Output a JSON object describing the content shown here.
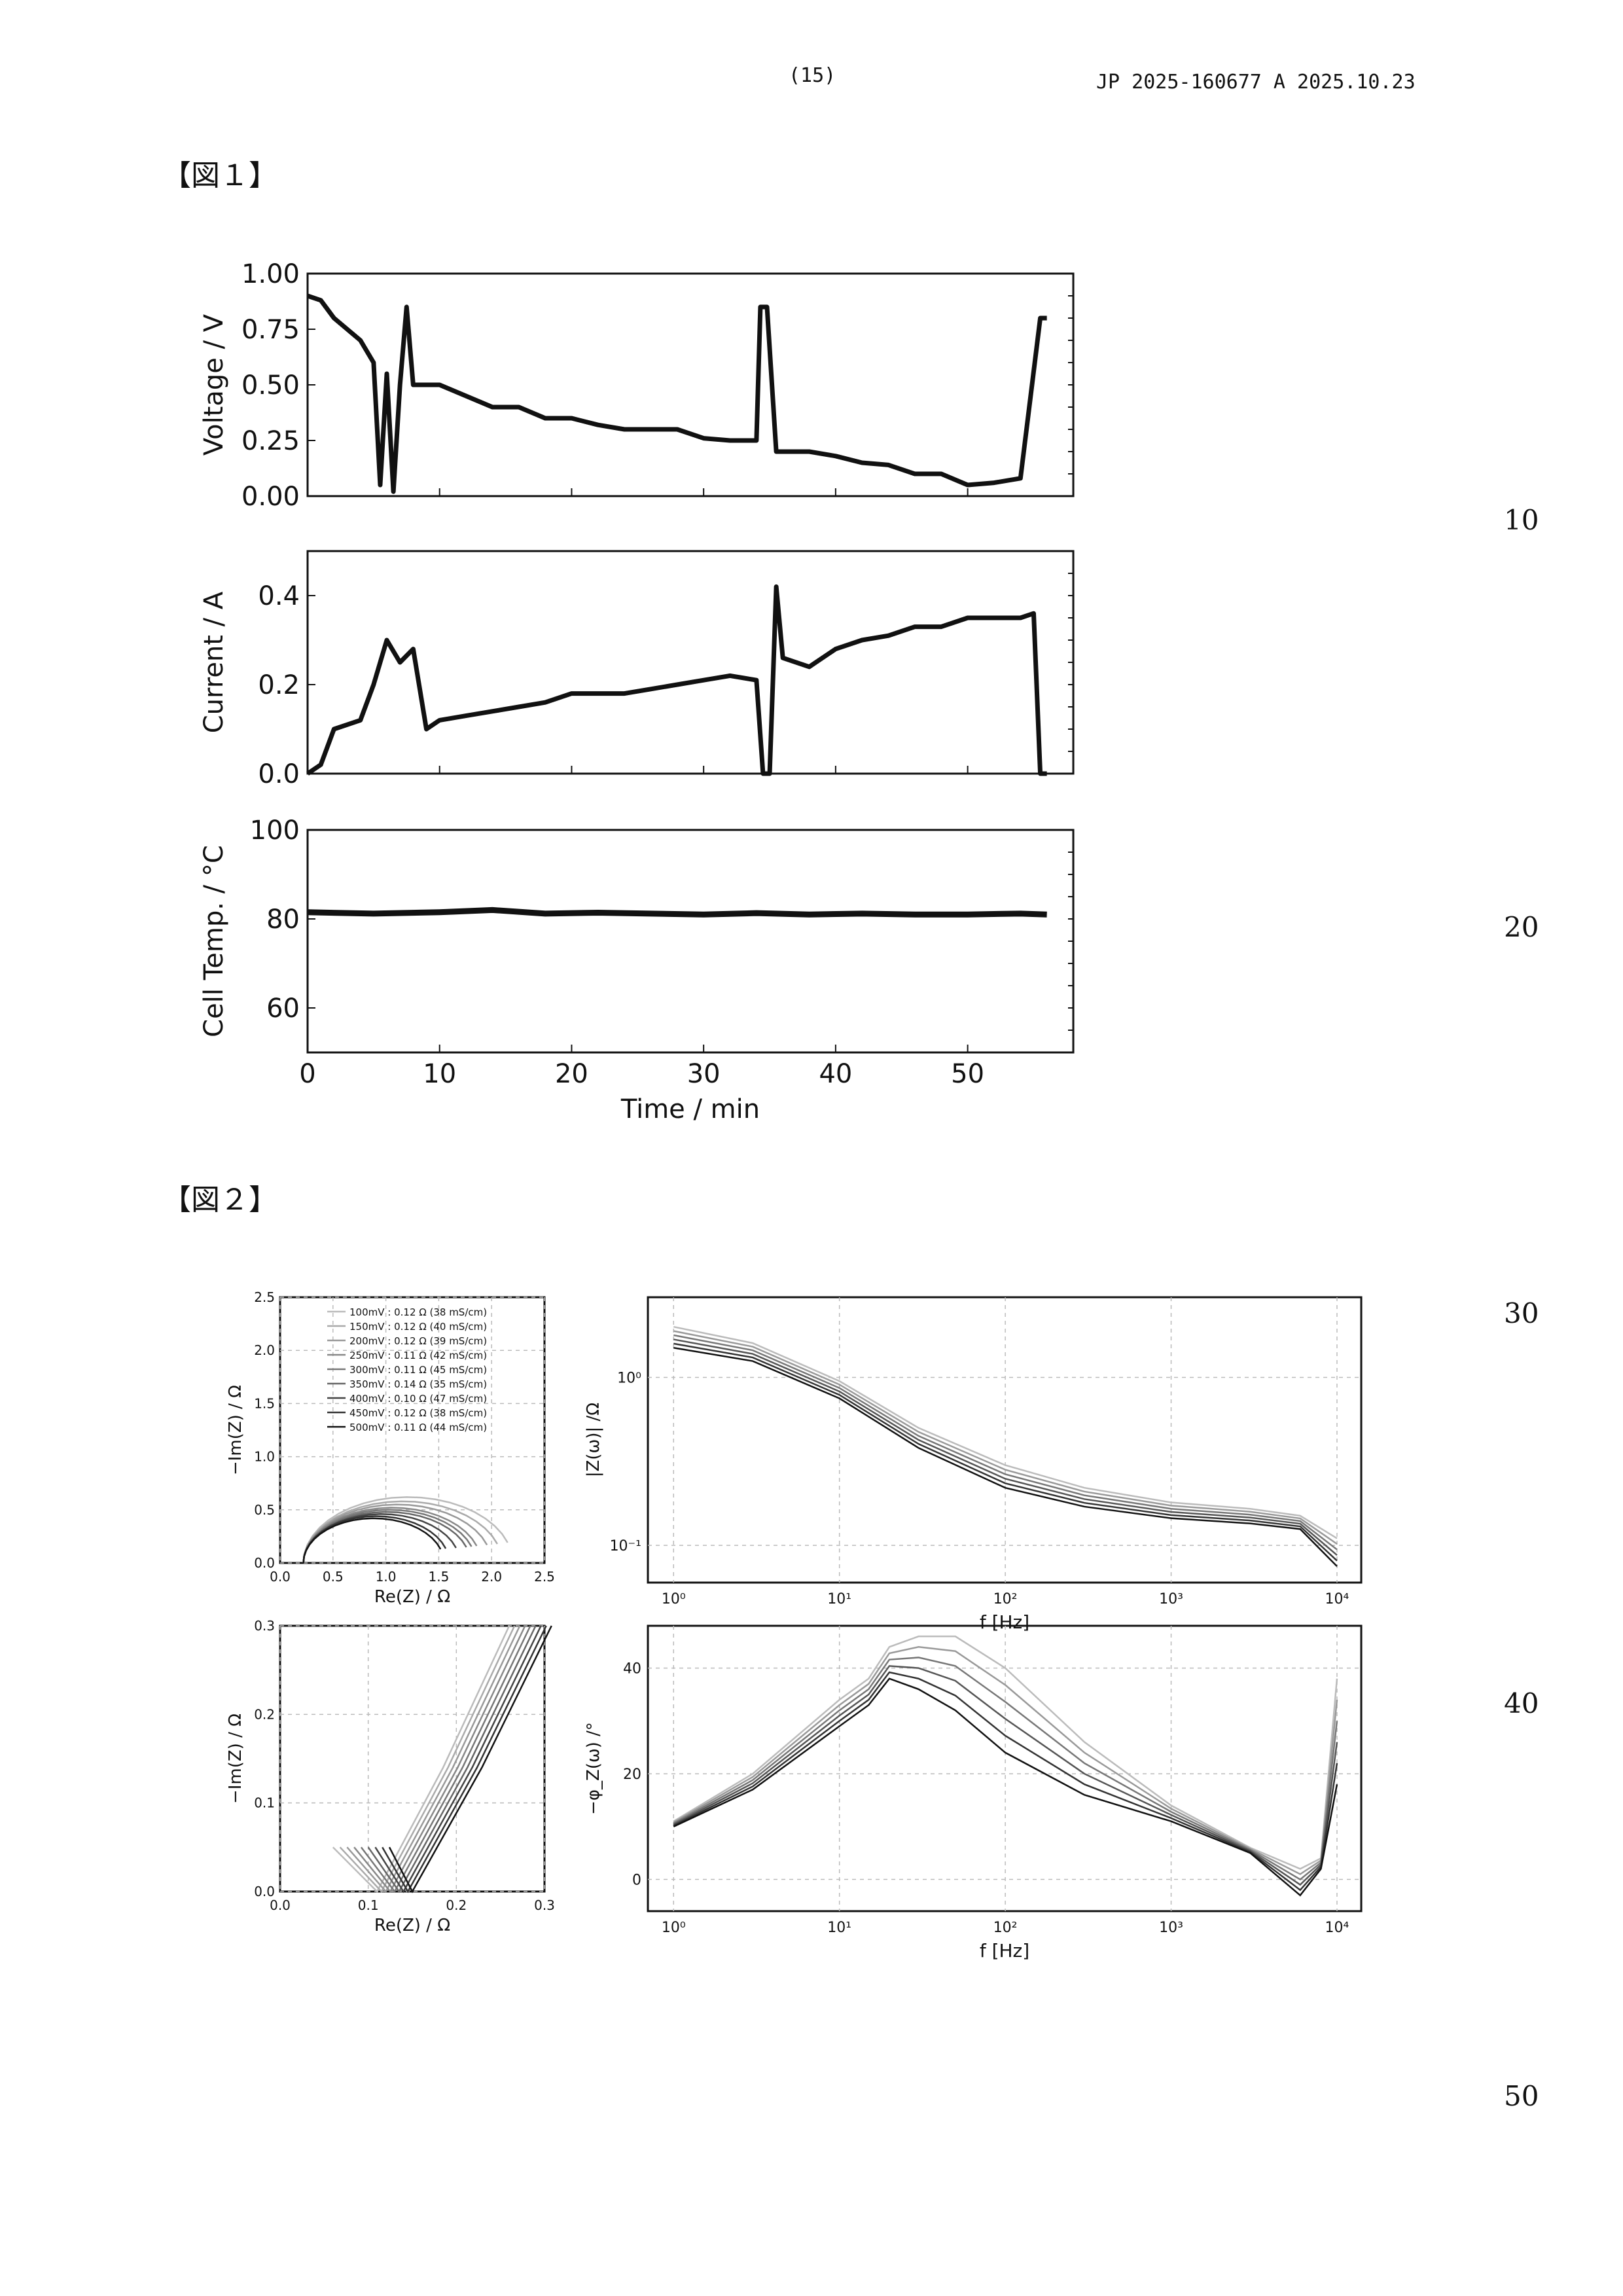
{
  "header": {
    "page_number": "(15)",
    "doc_id": "JP  2025-160677  A  2025.10.23"
  },
  "figures": {
    "fig1_label": "【図１】",
    "fig2_label": "【図２】"
  },
  "line_numbers": [
    "10",
    "20",
    "30",
    "40",
    "50"
  ],
  "chart_data": [
    {
      "type": "line",
      "xlabel": "",
      "ylabel": "Voltage / V",
      "xlim": [
        0,
        58
      ],
      "ylim": [
        0.0,
        1.0
      ],
      "yticks": [
        "0.00",
        "0.25",
        "0.50",
        "0.75",
        "1.00"
      ],
      "x": [
        0,
        1,
        2,
        3,
        4,
        5,
        5.5,
        6,
        6.5,
        7,
        7.5,
        8,
        10,
        12,
        14,
        16,
        18,
        20,
        22,
        24,
        26,
        28,
        30,
        32,
        34,
        34.3,
        34.8,
        35.5,
        36,
        38,
        40,
        42,
        44,
        46,
        48,
        50,
        52,
        54,
        55.5,
        56
      ],
      "values": [
        0.9,
        0.88,
        0.8,
        0.75,
        0.7,
        0.6,
        0.05,
        0.55,
        0.02,
        0.5,
        0.85,
        0.5,
        0.5,
        0.45,
        0.4,
        0.4,
        0.35,
        0.35,
        0.32,
        0.3,
        0.3,
        0.3,
        0.26,
        0.25,
        0.25,
        0.85,
        0.85,
        0.2,
        0.2,
        0.2,
        0.18,
        0.15,
        0.14,
        0.1,
        0.1,
        0.05,
        0.06,
        0.08,
        0.8,
        0.8
      ]
    },
    {
      "type": "line",
      "xlabel": "",
      "ylabel": "Current / A",
      "xlim": [
        0,
        58
      ],
      "ylim": [
        0.0,
        0.5
      ],
      "yticks": [
        "0.0",
        "0.2",
        "0.4"
      ],
      "x": [
        0,
        1,
        2,
        4,
        5,
        6,
        7,
        8,
        9,
        10,
        12,
        14,
        16,
        18,
        20,
        22,
        24,
        26,
        28,
        30,
        32,
        34,
        34.5,
        35,
        35.5,
        36,
        38,
        40,
        42,
        44,
        46,
        48,
        50,
        52,
        54,
        55,
        55.5,
        56
      ],
      "values": [
        0.0,
        0.02,
        0.1,
        0.12,
        0.2,
        0.3,
        0.25,
        0.28,
        0.1,
        0.12,
        0.13,
        0.14,
        0.15,
        0.16,
        0.18,
        0.18,
        0.18,
        0.19,
        0.2,
        0.21,
        0.22,
        0.21,
        0.0,
        0.0,
        0.42,
        0.26,
        0.24,
        0.28,
        0.3,
        0.31,
        0.33,
        0.33,
        0.35,
        0.35,
        0.35,
        0.36,
        0.0,
        0.0
      ]
    },
    {
      "type": "line",
      "xlabel": "Time / min",
      "ylabel": "Cell Temp. / °C",
      "xlim": [
        0,
        58
      ],
      "ylim": [
        50,
        100
      ],
      "xticks": [
        "0",
        "10",
        "20",
        "30",
        "40",
        "50"
      ],
      "yticks": [
        "60",
        "80",
        "100"
      ],
      "x": [
        0,
        5,
        10,
        14,
        18,
        22,
        26,
        30,
        34,
        38,
        42,
        46,
        50,
        54,
        56
      ],
      "values": [
        81.5,
        81.2,
        81.5,
        82.0,
        81.2,
        81.4,
        81.2,
        81.0,
        81.3,
        81.0,
        81.2,
        81.0,
        81.0,
        81.2,
        81.0
      ]
    },
    {
      "type": "line",
      "title": "",
      "xlabel": "Re(Z) / Ω",
      "ylabel": "−Im(Z) / Ω",
      "xlim": [
        0.0,
        2.5
      ],
      "ylim": [
        0.0,
        2.5
      ],
      "xticks": [
        "0.0",
        "0.5",
        "1.0",
        "1.5",
        "2.0",
        "2.5"
      ],
      "yticks": [
        "0.0",
        "0.5",
        "1.0",
        "1.5",
        "2.0",
        "2.5"
      ],
      "legend": "top-right",
      "series": [
        {
          "name": "100mV : 0.12 Ω (38 mS/cm)",
          "peak": 0.62,
          "end": 2.1
        },
        {
          "name": "150mV : 0.12 Ω (40 mS/cm)",
          "peak": 0.58,
          "end": 2.0
        },
        {
          "name": "200mV : 0.12 Ω (39 mS/cm)",
          "peak": 0.55,
          "end": 1.9
        },
        {
          "name": "250mV : 0.11 Ω (42 mS/cm)",
          "peak": 0.52,
          "end": 1.8
        },
        {
          "name": "300mV : 0.11 Ω (45 mS/cm)",
          "peak": 0.5,
          "end": 1.75
        },
        {
          "name": "350mV : 0.14 Ω (35 mS/cm)",
          "peak": 0.48,
          "end": 1.7
        },
        {
          "name": "400mV : 0.10 Ω (47 mS/cm)",
          "peak": 0.46,
          "end": 1.6
        },
        {
          "name": "450mV : 0.12 Ω (38 mS/cm)",
          "peak": 0.44,
          "end": 1.5
        },
        {
          "name": "500mV : 0.11 Ω (44 mS/cm)",
          "peak": 0.42,
          "end": 1.45
        }
      ]
    },
    {
      "type": "line",
      "xlabel": "f [Hz]",
      "ylabel": "|Z(ω)| /Ω",
      "xscale": "log",
      "yscale": "log",
      "xlim": [
        0.7,
        14000
      ],
      "ylim": [
        0.06,
        3.0
      ],
      "xticks": [
        "10⁰",
        "10¹",
        "10²",
        "10³",
        "10⁴"
      ],
      "yticks": [
        "10⁻¹",
        "10⁰"
      ],
      "x": [
        1,
        3,
        10,
        30,
        100,
        300,
        1000,
        3000,
        6000,
        10000
      ],
      "series_envelope": {
        "upper": [
          2.0,
          1.6,
          0.95,
          0.5,
          0.3,
          0.22,
          0.18,
          0.165,
          0.15,
          0.11
        ],
        "lower": [
          1.5,
          1.25,
          0.75,
          0.38,
          0.22,
          0.17,
          0.145,
          0.135,
          0.125,
          0.075
        ]
      }
    },
    {
      "type": "line",
      "xlabel": "Re(Z) / Ω",
      "ylabel": "−Im(Z) / Ω",
      "xlim": [
        0.0,
        0.3
      ],
      "ylim": [
        0.0,
        0.3
      ],
      "xticks": [
        "0.0",
        "0.1",
        "0.2",
        "0.3"
      ],
      "yticks": [
        "0.0",
        "0.1",
        "0.2",
        "0.3"
      ]
    },
    {
      "type": "line",
      "xlabel": "f [Hz]",
      "ylabel": "−φ_Z(ω) /°",
      "xscale": "log",
      "xlim": [
        0.7,
        14000
      ],
      "ylim": [
        -6,
        48
      ],
      "xticks": [
        "10⁰",
        "10¹",
        "10²",
        "10³",
        "10⁴"
      ],
      "yticks": [
        "0",
        "20",
        "40"
      ],
      "x": [
        1,
        3,
        10,
        15,
        20,
        30,
        50,
        100,
        300,
        1000,
        3000,
        6000,
        8000,
        10000
      ],
      "series_envelope": {
        "upper": [
          11,
          20,
          34,
          38,
          44,
          46,
          46,
          40,
          26,
          14,
          6,
          2,
          4,
          38
        ],
        "lower": [
          10,
          17,
          29,
          33,
          38,
          36,
          32,
          24,
          16,
          11,
          5,
          -3,
          2,
          18
        ]
      }
    }
  ]
}
